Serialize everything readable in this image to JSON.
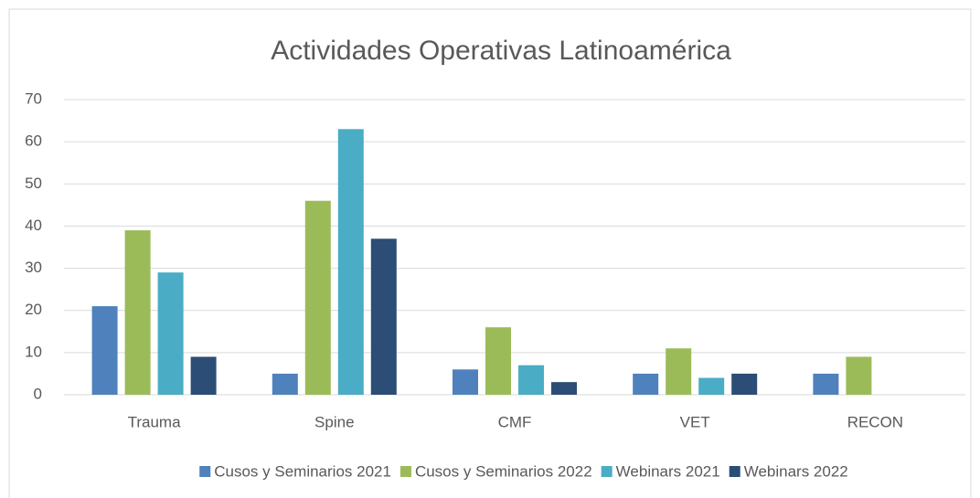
{
  "chart_data": {
    "type": "bar",
    "title": "Actividades Operativas Latinoamérica",
    "categories": [
      "Trauma",
      "Spine",
      "CMF",
      "VET",
      "RECON"
    ],
    "series": [
      {
        "name": "Cusos y Seminarios 2021",
        "color": "#4f81bd",
        "values": [
          21,
          5,
          6,
          5,
          5
        ]
      },
      {
        "name": "Cusos y Seminarios 2022",
        "color": "#9bbb59",
        "values": [
          39,
          46,
          16,
          11,
          9
        ]
      },
      {
        "name": "Webinars 2021",
        "color": "#4bacc6",
        "values": [
          29,
          63,
          7,
          4,
          null
        ]
      },
      {
        "name": "Webinars 2022",
        "color": "#2c4d75",
        "values": [
          9,
          37,
          3,
          5,
          null
        ]
      }
    ],
    "ylim": [
      0,
      70
    ],
    "yticks": [
      0,
      10,
      20,
      30,
      40,
      50,
      60,
      70
    ],
    "grid": true,
    "legend": "bottom"
  }
}
